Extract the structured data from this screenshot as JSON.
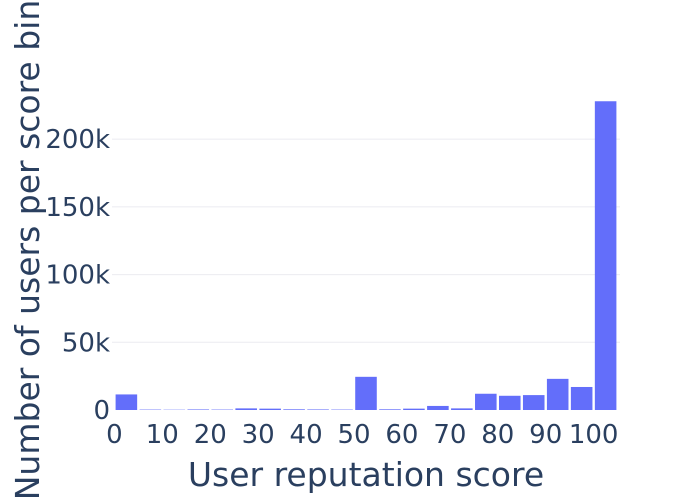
{
  "chart_data": {
    "type": "bar",
    "title": "",
    "xlabel": "User reputation score",
    "ylabel": "Number of users per score bin",
    "bin_width": 5,
    "x": [
      2.5,
      7.5,
      12.5,
      17.5,
      22.5,
      27.5,
      32.5,
      37.5,
      42.5,
      47.5,
      52.5,
      57.5,
      62.5,
      67.5,
      72.5,
      77.5,
      82.5,
      87.5,
      92.5,
      97.5,
      102.5
    ],
    "values": [
      11500,
      300,
      200,
      400,
      300,
      1200,
      1000,
      500,
      400,
      300,
      24500,
      500,
      1000,
      3000,
      1200,
      12000,
      10500,
      11000,
      23000,
      17000,
      228000
    ],
    "xlim": [
      -0.5,
      105.5
    ],
    "ylim": [
      0,
      240000
    ],
    "x_ticks": [
      0,
      10,
      20,
      30,
      40,
      50,
      60,
      70,
      80,
      90,
      100
    ],
    "x_tick_labels": [
      "0",
      "10",
      "20",
      "30",
      "40",
      "50",
      "60",
      "70",
      "80",
      "90",
      "100"
    ],
    "y_ticks": [
      0,
      50000,
      100000,
      150000,
      200000
    ],
    "y_tick_labels": [
      "0",
      "50k",
      "100k",
      "150k",
      "200k"
    ],
    "grid": true,
    "legend": "none",
    "colors": {
      "bar": "#636efa",
      "grid": "#ebebf0",
      "text": "#2a3f5f",
      "background": "#ffffff"
    }
  }
}
